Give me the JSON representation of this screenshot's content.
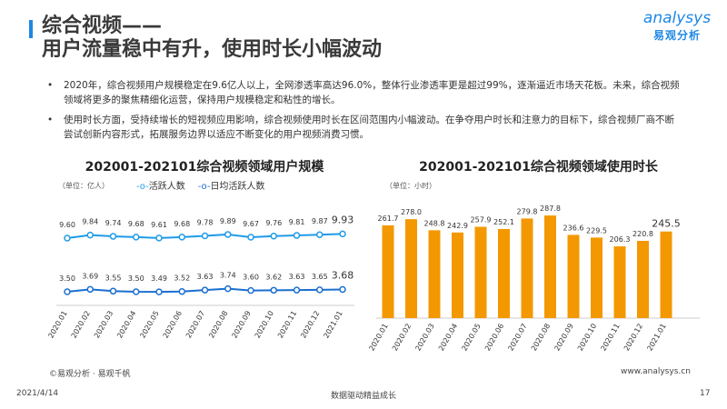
{
  "header": {
    "title_line1": "综合视频——",
    "title_line2": "用户流量稳中有升，使用时长小幅波动"
  },
  "logo": {
    "text_en": "analysys",
    "text_cn": "易观分析"
  },
  "bullets": [
    "2020年，综合视频用户规模稳定在9.6亿人以上，全网渗透率高达96.0%，整体行业渗透率更是超过99%，逐渐逼近市场天花板。未来，综合视频领域将更多的聚焦精细化运营，保持用户规模稳定和粘性的增长。",
    "使用时长方面，受持续增长的短视频应用影响，综合视频使用时长在区间范围内小幅波动。在争夺用户时长和注意力的目标下，综合视频厂商不断尝试创新内容形式，拓展服务边界以适应不断变化的用户视频消费习惯。"
  ],
  "chart_data": [
    {
      "type": "line",
      "title": "202001-202101综合视频领域用户规模",
      "unit": "（单位：亿人）",
      "categories": [
        "2020.01",
        "2020.02",
        "2020.03",
        "2020.04",
        "2020.05",
        "2020.06",
        "2020.07",
        "2020.08",
        "2020.09",
        "2020.10",
        "2020.11",
        "2020.12",
        "2021.01"
      ],
      "series": [
        {
          "name": "活跃人数",
          "color": "#1e9be8",
          "values": [
            9.6,
            9.84,
            9.74,
            9.68,
            9.61,
            9.68,
            9.78,
            9.89,
            9.67,
            9.76,
            9.81,
            9.87,
            9.93
          ]
        },
        {
          "name": "日均活跃人数",
          "color": "#1a6fd1",
          "values": [
            3.5,
            3.69,
            3.55,
            3.5,
            3.49,
            3.52,
            3.63,
            3.74,
            3.6,
            3.62,
            3.63,
            3.65,
            3.68
          ]
        }
      ]
    },
    {
      "type": "bar",
      "title": "202001-202101综合视频领域使用时长",
      "unit": "（单位：小时）",
      "color": "#f39800",
      "categories": [
        "2020.01",
        "2020.02",
        "2020.03",
        "2020.04",
        "2020.05",
        "2020.06",
        "2020.07",
        "2020.08",
        "2020.09",
        "2020.10",
        "2020.11",
        "2020.12",
        "2021.01"
      ],
      "values": [
        261.7,
        278.0,
        248.8,
        242.9,
        257.9,
        252.1,
        279.8,
        287.8,
        236.6,
        229.5,
        206.3,
        220.8,
        245.5
      ]
    }
  ],
  "footer": {
    "source": "©易观分析 · 易观千帆",
    "website": "www.analysys.cn",
    "date": "2021/4/14",
    "slogan": "数据驱动精益成长",
    "page": "17"
  }
}
